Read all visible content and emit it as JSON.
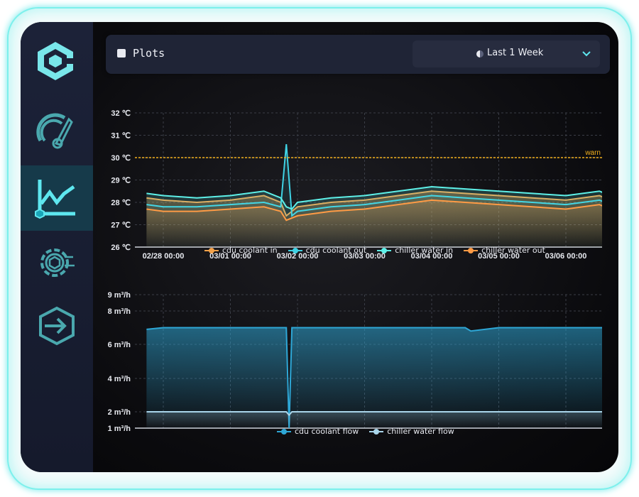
{
  "header": {
    "title": "Plots",
    "range_label": "Last 1 Week"
  },
  "sidebar": {
    "items": [
      "dashboard-gauge",
      "plots",
      "settings-gear",
      "export"
    ],
    "active": "plots"
  },
  "colors": {
    "cdu_coolant_in": "#f3a24a",
    "cdu_coolant_out": "#3fd2e4",
    "chiller_water_in": "#5ef0e8",
    "chiller_water_out": "#ff9b45",
    "cdu_coolant_flow": "#2ea7d6",
    "chiller_water_flow": "#a9d5ea",
    "warn": "#f2b01e"
  },
  "chart_data": [
    {
      "type": "line",
      "title": "",
      "xlabel": "",
      "ylabel": "",
      "x_ticks": [
        "02/28 00:00",
        "03/01 00:00",
        "03/02 00:00",
        "03/03 00:00",
        "03/04 00:00",
        "03/05 00:00",
        "03/06 00:00"
      ],
      "y_ticks": [
        "26 ℃",
        "27 ℃",
        "28 ℃",
        "29 ℃",
        "30 ℃",
        "31 ℃",
        "32 ℃"
      ],
      "ylim": [
        26,
        32
      ],
      "x": [
        "02/27 18:00",
        "02/28 00:00",
        "02/28 12:00",
        "03/01 00:00",
        "03/01 12:00",
        "03/01 18:00",
        "03/01 20:00",
        "03/01 22:00",
        "03/02 00:00",
        "03/02 12:00",
        "03/03 00:00",
        "03/03 12:00",
        "03/04 00:00",
        "03/04 12:00",
        "03/05 00:00",
        "03/05 12:00",
        "03/06 00:00",
        "03/06 12:00",
        "03/06 18:00"
      ],
      "series": [
        {
          "name": "cdu coolant in",
          "values": [
            28.2,
            28.1,
            28.0,
            28.1,
            28.3,
            28.0,
            27.4,
            27.6,
            27.8,
            28.0,
            28.1,
            28.3,
            28.5,
            28.4,
            28.3,
            28.2,
            28.1,
            28.3,
            28.0
          ]
        },
        {
          "name": "cdu coolant out",
          "values": [
            27.9,
            27.8,
            27.8,
            27.9,
            28.0,
            27.8,
            30.6,
            27.4,
            27.6,
            27.8,
            27.9,
            28.1,
            28.3,
            28.2,
            28.1,
            28.0,
            27.9,
            28.1,
            27.8
          ]
        },
        {
          "name": "chiller water in",
          "values": [
            28.4,
            28.3,
            28.2,
            28.3,
            28.5,
            28.2,
            27.8,
            27.7,
            28.0,
            28.2,
            28.3,
            28.5,
            28.7,
            28.6,
            28.5,
            28.4,
            28.3,
            28.5,
            28.2
          ]
        },
        {
          "name": "chiller water out",
          "values": [
            27.7,
            27.6,
            27.6,
            27.7,
            27.8,
            27.6,
            27.2,
            27.3,
            27.4,
            27.6,
            27.7,
            27.9,
            28.1,
            28.0,
            27.9,
            27.8,
            27.7,
            27.9,
            27.6
          ]
        }
      ],
      "threshold": {
        "label": "warn",
        "value": 30
      }
    },
    {
      "type": "area",
      "title": "",
      "xlabel": "",
      "ylabel": "",
      "x_ticks": [
        "02/28 00:00",
        "03/01 00:00",
        "03/02 00:00",
        "03/03 00:00",
        "03/04 00:00",
        "03/05 00:00",
        "03/06 00:00"
      ],
      "y_ticks": [
        "1 m³/h",
        "2 m³/h",
        "4 m³/h",
        "6 m³/h",
        "8 m³/h",
        "9 m³/h"
      ],
      "ylim": [
        1,
        9
      ],
      "x": [
        "02/27 18:00",
        "02/28 00:00",
        "03/01 00:00",
        "03/01 20:00",
        "03/01 21:00",
        "03/01 22:00",
        "03/02 00:00",
        "03/03 00:00",
        "03/04 00:00",
        "03/04 12:00",
        "03/04 14:00",
        "03/05 00:00",
        "03/06 00:00",
        "03/06 18:00"
      ],
      "series": [
        {
          "name": "cdu coolant flow",
          "values": [
            6.9,
            7.0,
            7.0,
            7.0,
            1.0,
            7.0,
            7.0,
            7.0,
            7.0,
            7.0,
            6.8,
            7.0,
            7.0,
            7.0
          ]
        },
        {
          "name": "chiller water flow",
          "values": [
            2.0,
            2.0,
            2.0,
            2.0,
            1.8,
            2.0,
            2.0,
            2.0,
            2.0,
            2.0,
            2.0,
            2.0,
            2.0,
            2.0
          ]
        }
      ]
    }
  ]
}
